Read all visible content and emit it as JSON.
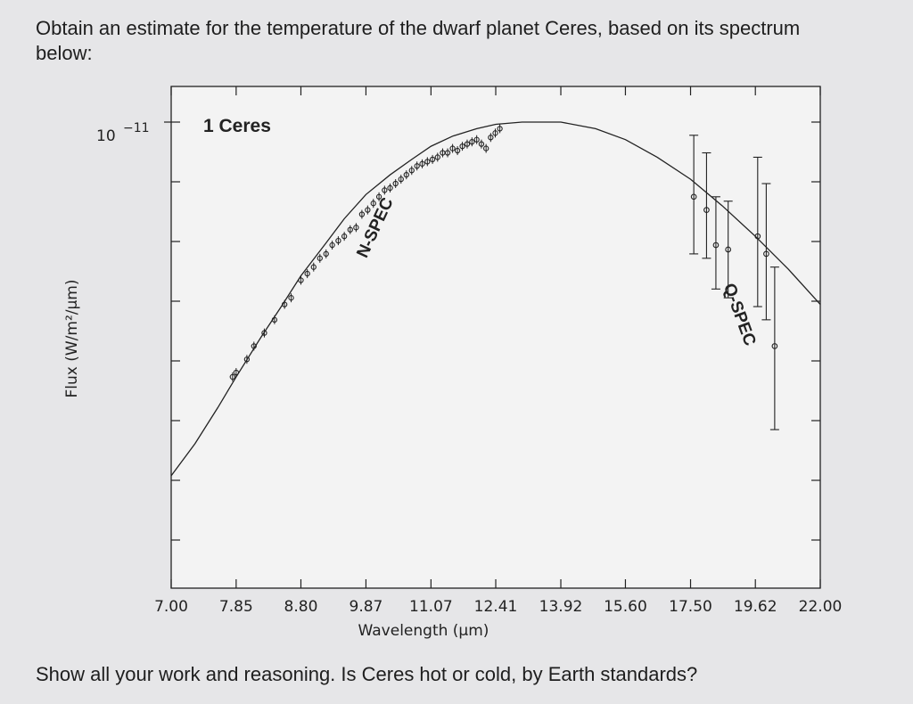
{
  "question": {
    "text": "Obtain an estimate for the temperature of the dwarf planet Ceres, based on its spectrum below:",
    "footer": "Show all your work and reasoning. Is Ceres hot or cold, by Earth standards?"
  },
  "chart_data": {
    "type": "line",
    "title": "1 Ceres",
    "xlabel": "Wavelength (μm)",
    "ylabel": "Flux (W/m²/μm)",
    "x_scale": "log",
    "y_scale": "log",
    "xlim": [
      7.0,
      22.0
    ],
    "x_ticks": [
      "7.00",
      "7.85",
      "8.80",
      "9.87",
      "11.07",
      "12.41",
      "13.92",
      "15.60",
      "17.50",
      "19.62",
      "22.00"
    ],
    "y_tick_label": {
      "base": "10",
      "exponent": "−11"
    },
    "annotations": [
      "N-SPEC",
      "Q-SPEC"
    ],
    "series": [
      {
        "type": "model-curve",
        "x": [
          7.0,
          7.3,
          7.6,
          7.85,
          8.2,
          8.5,
          8.8,
          9.2,
          9.5,
          9.87,
          10.3,
          10.7,
          11.07,
          11.5,
          12.0,
          12.41,
          13.0,
          13.92,
          14.8,
          15.6,
          16.5,
          17.5,
          18.5,
          19.62,
          20.8,
          22.0
        ],
        "y": [
          0.195,
          0.268,
          0.35,
          0.42,
          0.51,
          0.58,
          0.65,
          0.725,
          0.78,
          0.835,
          0.88,
          0.915,
          0.945,
          0.968,
          0.985,
          0.995,
          1.0,
          1.0,
          0.985,
          0.96,
          0.92,
          0.87,
          0.81,
          0.74,
          0.665,
          0.585
        ]
      },
      {
        "type": "N-SPEC points",
        "x": [
          7.8,
          7.85,
          8.0,
          8.1,
          8.25,
          8.4,
          8.55,
          8.65,
          8.8,
          8.9,
          9.0,
          9.1,
          9.2,
          9.3,
          9.4,
          9.5,
          9.6,
          9.7,
          9.8,
          9.9,
          10.0,
          10.1,
          10.2,
          10.3,
          10.4,
          10.5,
          10.6,
          10.7,
          10.8,
          10.9,
          11.0,
          11.1,
          11.2,
          11.3,
          11.4,
          11.5,
          11.6,
          11.7,
          11.8,
          11.9,
          12.0,
          12.1,
          12.2,
          12.3,
          12.4,
          12.5
        ],
        "y": [
          0.42,
          0.43,
          0.46,
          0.49,
          0.52,
          0.55,
          0.585,
          0.6,
          0.64,
          0.655,
          0.67,
          0.69,
          0.7,
          0.72,
          0.73,
          0.74,
          0.755,
          0.76,
          0.79,
          0.8,
          0.815,
          0.83,
          0.845,
          0.85,
          0.86,
          0.87,
          0.88,
          0.89,
          0.9,
          0.905,
          0.91,
          0.915,
          0.92,
          0.93,
          0.93,
          0.94,
          0.935,
          0.945,
          0.95,
          0.955,
          0.96,
          0.95,
          0.94,
          0.965,
          0.975,
          0.985
        ]
      },
      {
        "type": "Q-SPEC points",
        "x": [
          17.6,
          18.0,
          18.3,
          18.7,
          19.7,
          20.0,
          20.3
        ],
        "y": [
          0.83,
          0.8,
          0.72,
          0.71,
          0.74,
          0.7,
          0.49
        ],
        "y_err_low": [
          0.7,
          0.69,
          0.62,
          0.6,
          0.58,
          0.55,
          0.3
        ],
        "y_err_high": [
          0.97,
          0.93,
          0.83,
          0.82,
          0.92,
          0.86,
          0.67
        ]
      }
    ]
  }
}
